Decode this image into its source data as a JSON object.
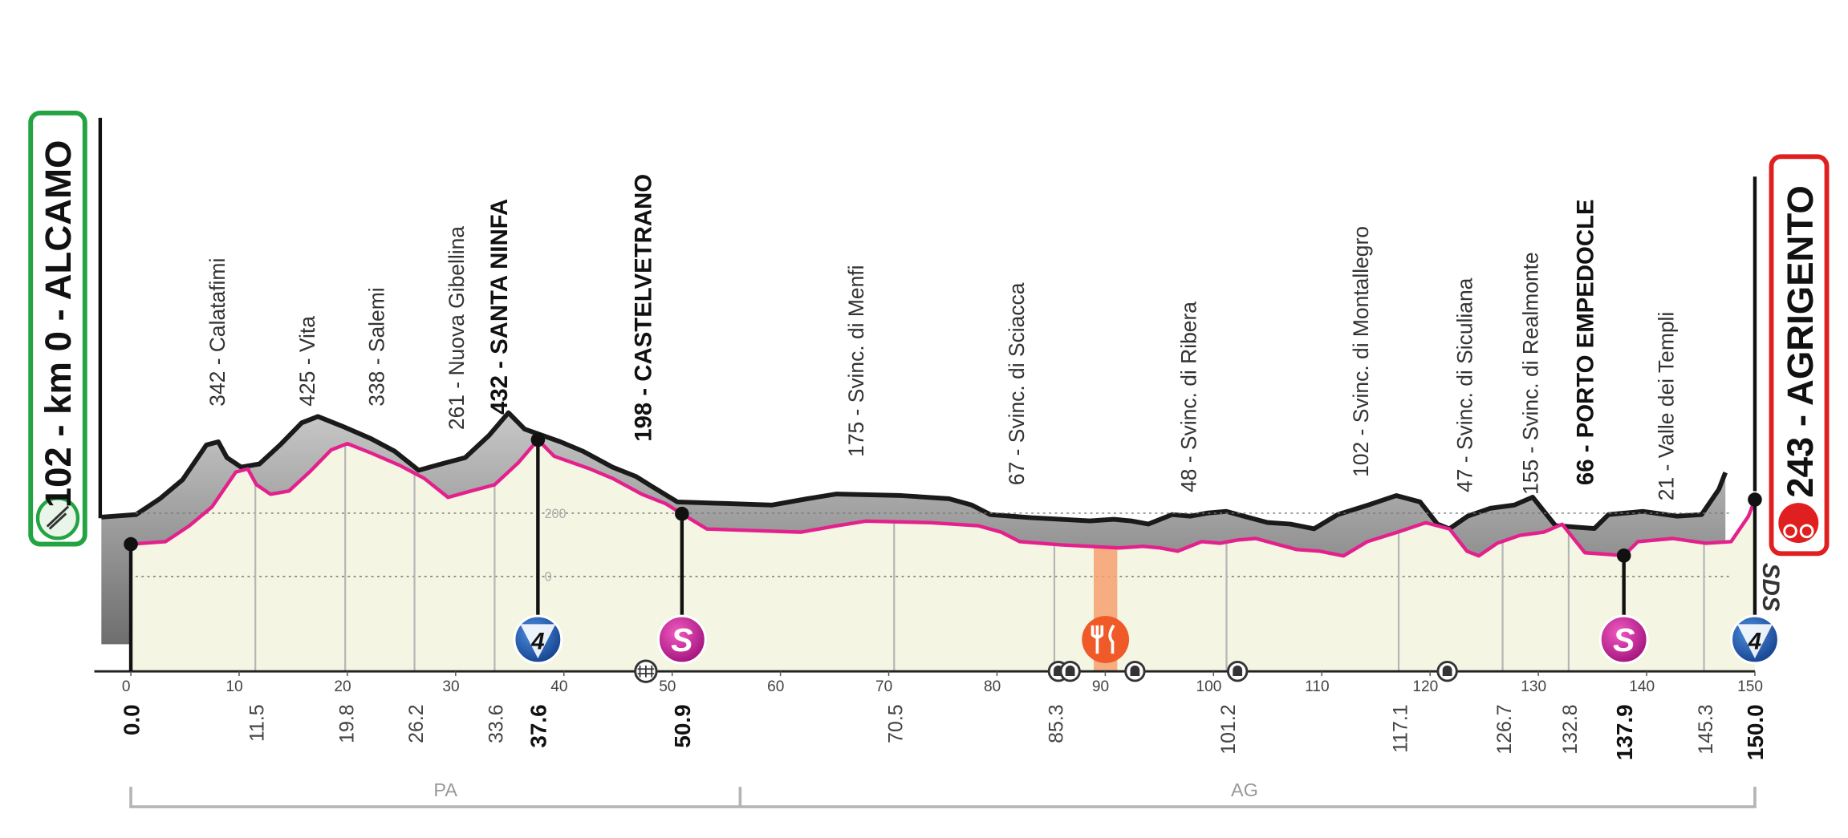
{
  "chart_data": {
    "type": "area",
    "start": "102 - km 0 - ALCAMO",
    "finish": "243 - AGRIGENTO",
    "sponsor": "SDS",
    "x": [
      0,
      3.2,
      5.4,
      7.5,
      9.7,
      10.8,
      11.6,
      12.9,
      14.6,
      16.5,
      18.5,
      20.0,
      22.2,
      24.9,
      27.1,
      29.3,
      31.4,
      33.6,
      35.8,
      37.6,
      39.1,
      42.4,
      44.5,
      47.2,
      49.4,
      50.9,
      53.2,
      57.6,
      61.9,
      65.2,
      67.9,
      73.9,
      78.3,
      80.4,
      82.1,
      85.9,
      91.3,
      93.5,
      95.1,
      96.7,
      98.9,
      100.6,
      102.2,
      103.9,
      105.5,
      107.7,
      109.8,
      112.0,
      114.2,
      117.0,
      119.6,
      121.8,
      123.4,
      124.5,
      126.2,
      128.3,
      130.5,
      132.2,
      134.3,
      137.9,
      139.2,
      142.4,
      145.5,
      147.8,
      149.4,
      150
    ],
    "values": [
      102,
      110,
      160,
      220,
      330,
      340,
      290,
      260,
      270,
      330,
      400,
      420,
      390,
      350,
      310,
      250,
      270,
      290,
      360,
      432,
      380,
      340,
      310,
      260,
      230,
      198,
      150,
      145,
      140,
      160,
      175,
      170,
      160,
      140,
      110,
      100,
      90,
      95,
      90,
      80,
      110,
      105,
      115,
      120,
      105,
      85,
      80,
      65,
      110,
      140,
      170,
      150,
      80,
      65,
      105,
      130,
      140,
      165,
      75,
      66,
      110,
      120,
      105,
      110,
      190,
      243
    ],
    "line_color": "#e3208c",
    "fill_color": "#f4f6e3",
    "relief_color": "#9c9c9c",
    "xlim": [
      0,
      150
    ],
    "ylim": [
      -300,
      1450
    ],
    "xticks": [
      0,
      10,
      20,
      30,
      40,
      50,
      60,
      70,
      80,
      90,
      100,
      110,
      120,
      130,
      140,
      150
    ],
    "yticks": [
      0,
      200
    ],
    "grid": true,
    "waypoints": [
      {
        "km": {
          "value": 0,
          "label": "0.0"
        },
        "major": true
      },
      {
        "km": 11.5,
        "name": "342 - Calatafimi"
      },
      {
        "km": 19.8,
        "name": "425 - Vita"
      },
      {
        "km": 26.2,
        "name": "338 - Salemi"
      },
      {
        "km": 33.6,
        "name": "261 - Nuova Gibellina"
      },
      {
        "km": 37.6,
        "name": "432 - SANTA NINFA",
        "major": true,
        "icon": "climb",
        "icon_label": "4"
      },
      {
        "km": 50.9,
        "name": "198 - CASTELVETRANO",
        "major": true,
        "icon": "sprint",
        "icon_label": "S"
      },
      {
        "km": 70.5,
        "name": "175 - Svinc. di Menfi"
      },
      {
        "km": 85.3,
        "name": "67 - Svinc. di Sciacca"
      },
      {
        "km": 101.2,
        "name": "48 - Svinc. di Ribera"
      },
      {
        "km": 117.1,
        "name": "102 - Svinc. di Montallegro"
      },
      {
        "km": 126.7,
        "name": "47 - Svinc. di Siculiana"
      },
      {
        "km": 132.8,
        "name": "155 - Svinc. di Realmonte"
      },
      {
        "km": 137.9,
        "name": "66 - PORTO EMPEDOCLE",
        "major": true,
        "icon": "sprint",
        "icon_label": "S"
      },
      {
        "km": 145.3,
        "name": "21 - Valle dei Templi"
      },
      {
        "km": {
          "value": 150,
          "label": "150.0"
        },
        "major": true,
        "icon": "climb",
        "icon_label": "4"
      }
    ],
    "regions": [
      "PA",
      "AG"
    ]
  }
}
